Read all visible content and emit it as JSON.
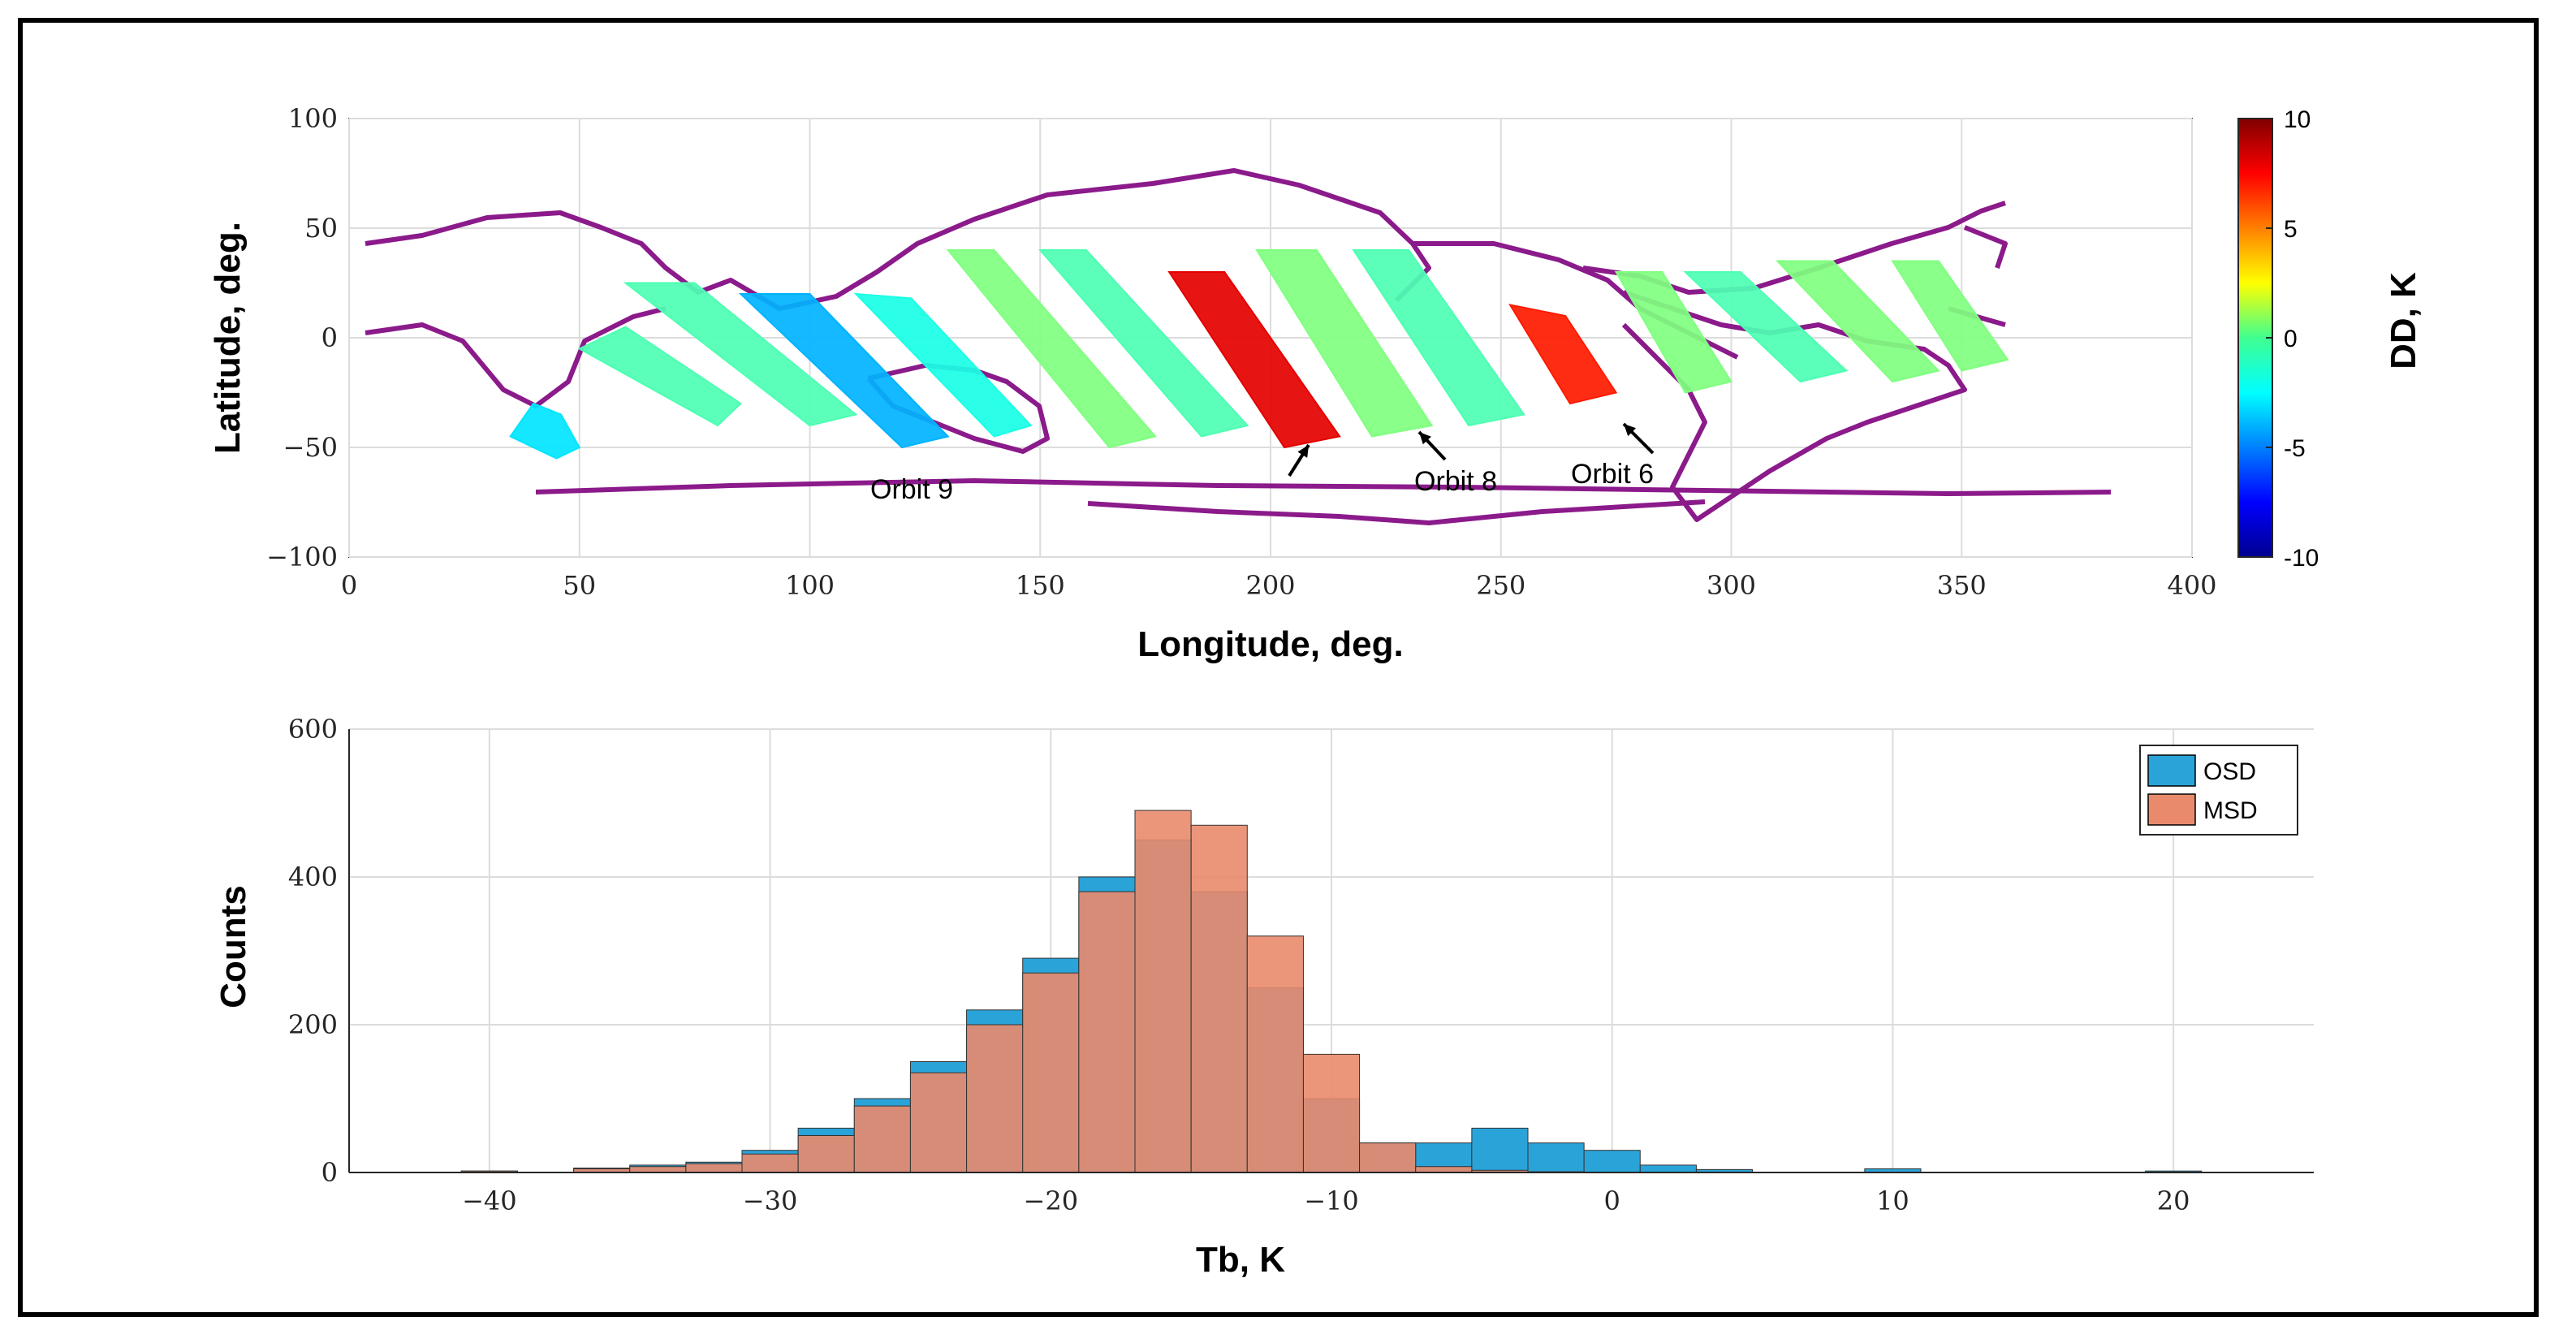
{
  "colors": {
    "coast": "#8b1a8b",
    "osd": "#2aa3d8",
    "msd": "#e98a6c",
    "grid": "#dcdcdc",
    "axis": "#262626"
  },
  "chart_data": [
    {
      "type": "scatter",
      "name": "map",
      "xlabel": "Longitude, deg.",
      "ylabel": "Latitude, deg.",
      "xlim": [
        0,
        400
      ],
      "ylim": [
        -100,
        100
      ],
      "xticks": [
        0,
        50,
        100,
        150,
        200,
        250,
        300,
        350,
        400
      ],
      "yticks": [
        -100,
        -50,
        0,
        50,
        100
      ],
      "grid": true,
      "colorbar": {
        "label": "DD, K",
        "range": [
          -10,
          10
        ],
        "ticks": [
          10,
          5,
          0,
          -5,
          -10
        ],
        "colormap": "jet"
      },
      "swaths": [
        {
          "lon": [
            40,
            35,
            38,
            45,
            50,
            46
          ],
          "lat": [
            -30,
            -45,
            -48,
            -55,
            -50,
            -35
          ],
          "dd": -3
        },
        {
          "lon": [
            60,
            50,
            80,
            85
          ],
          "lat": [
            5,
            -5,
            -40,
            -30
          ],
          "dd": -1
        },
        {
          "lon": [
            60,
            75,
            110,
            100
          ],
          "lat": [
            25,
            25,
            -35,
            -40
          ],
          "dd": -1
        },
        {
          "lon": [
            85,
            100,
            130,
            120
          ],
          "lat": [
            20,
            20,
            -45,
            -50
          ],
          "dd": -4
        },
        {
          "lon": [
            110,
            122,
            148,
            140
          ],
          "lat": [
            20,
            18,
            -40,
            -45
          ],
          "dd": -2
        },
        {
          "lon": [
            130,
            140,
            175,
            165
          ],
          "lat": [
            40,
            40,
            -45,
            -50
          ],
          "dd": 0
        },
        {
          "lon": [
            150,
            160,
            195,
            185
          ],
          "lat": [
            40,
            40,
            -40,
            -45
          ],
          "dd": -1
        },
        {
          "lon": [
            178,
            190,
            215,
            203
          ],
          "lat": [
            30,
            30,
            -45,
            -50
          ],
          "dd": 8,
          "orbit": "Orbit 9"
        },
        {
          "lon": [
            197,
            210,
            235,
            222
          ],
          "lat": [
            40,
            40,
            -40,
            -45
          ],
          "dd": 0,
          "orbit": "Orbit 8"
        },
        {
          "lon": [
            218,
            230,
            255,
            243
          ],
          "lat": [
            40,
            40,
            -35,
            -40
          ],
          "dd": -1
        },
        {
          "lon": [
            252,
            264,
            275,
            265
          ],
          "lat": [
            15,
            10,
            -25,
            -30
          ],
          "dd": 7,
          "orbit": "Orbit 6"
        },
        {
          "lon": [
            275,
            285,
            300,
            290
          ],
          "lat": [
            30,
            30,
            -20,
            -25
          ],
          "dd": 0
        },
        {
          "lon": [
            290,
            302,
            325,
            315
          ],
          "lat": [
            30,
            30,
            -15,
            -20
          ],
          "dd": -1
        },
        {
          "lon": [
            310,
            322,
            345,
            335
          ],
          "lat": [
            35,
            35,
            -15,
            -20
          ],
          "dd": 0
        },
        {
          "lon": [
            335,
            345,
            360,
            350
          ],
          "lat": [
            35,
            35,
            -10,
            -15
          ],
          "dd": 0
        }
      ],
      "annotations": [
        {
          "text": "Orbit 9",
          "lon": 205,
          "lat": -48
        },
        {
          "text": "Orbit 8",
          "lon": 233,
          "lat": -42
        },
        {
          "text": "Orbit 6",
          "lon": 273,
          "lat": -34
        }
      ]
    },
    {
      "type": "bar",
      "name": "histogram",
      "xlabel": "Tb, K",
      "ylabel": "Counts",
      "xlim": [
        -45,
        25
      ],
      "ylim": [
        0,
        600
      ],
      "xticks": [
        -40,
        -30,
        -20,
        -10,
        0,
        10,
        20
      ],
      "yticks": [
        0,
        200,
        400,
        600
      ],
      "grid": true,
      "legend_position": "top-right",
      "series": [
        {
          "name": "OSD",
          "color": "#2aa3d8",
          "x": [
            -40,
            -36,
            -34,
            -32,
            -30,
            -28,
            -26,
            -24,
            -22,
            -20,
            -18,
            -16,
            -14,
            -12,
            -10,
            -8,
            -6,
            -4,
            -2,
            0,
            2,
            4,
            10,
            20
          ],
          "y": [
            2,
            6,
            10,
            14,
            30,
            60,
            100,
            150,
            220,
            290,
            400,
            450,
            380,
            250,
            100,
            40,
            40,
            60,
            40,
            30,
            10,
            4,
            5,
            2
          ]
        },
        {
          "name": "MSD",
          "color": "#e98a6c",
          "x": [
            -40,
            -36,
            -34,
            -32,
            -30,
            -28,
            -26,
            -24,
            -22,
            -20,
            -18,
            -16,
            -14,
            -12,
            -10,
            -8,
            -6,
            -4,
            -2,
            0,
            2
          ],
          "y": [
            2,
            5,
            8,
            12,
            25,
            50,
            90,
            135,
            200,
            270,
            380,
            490,
            470,
            320,
            160,
            40,
            8,
            3,
            1,
            0,
            0
          ]
        }
      ]
    }
  ]
}
